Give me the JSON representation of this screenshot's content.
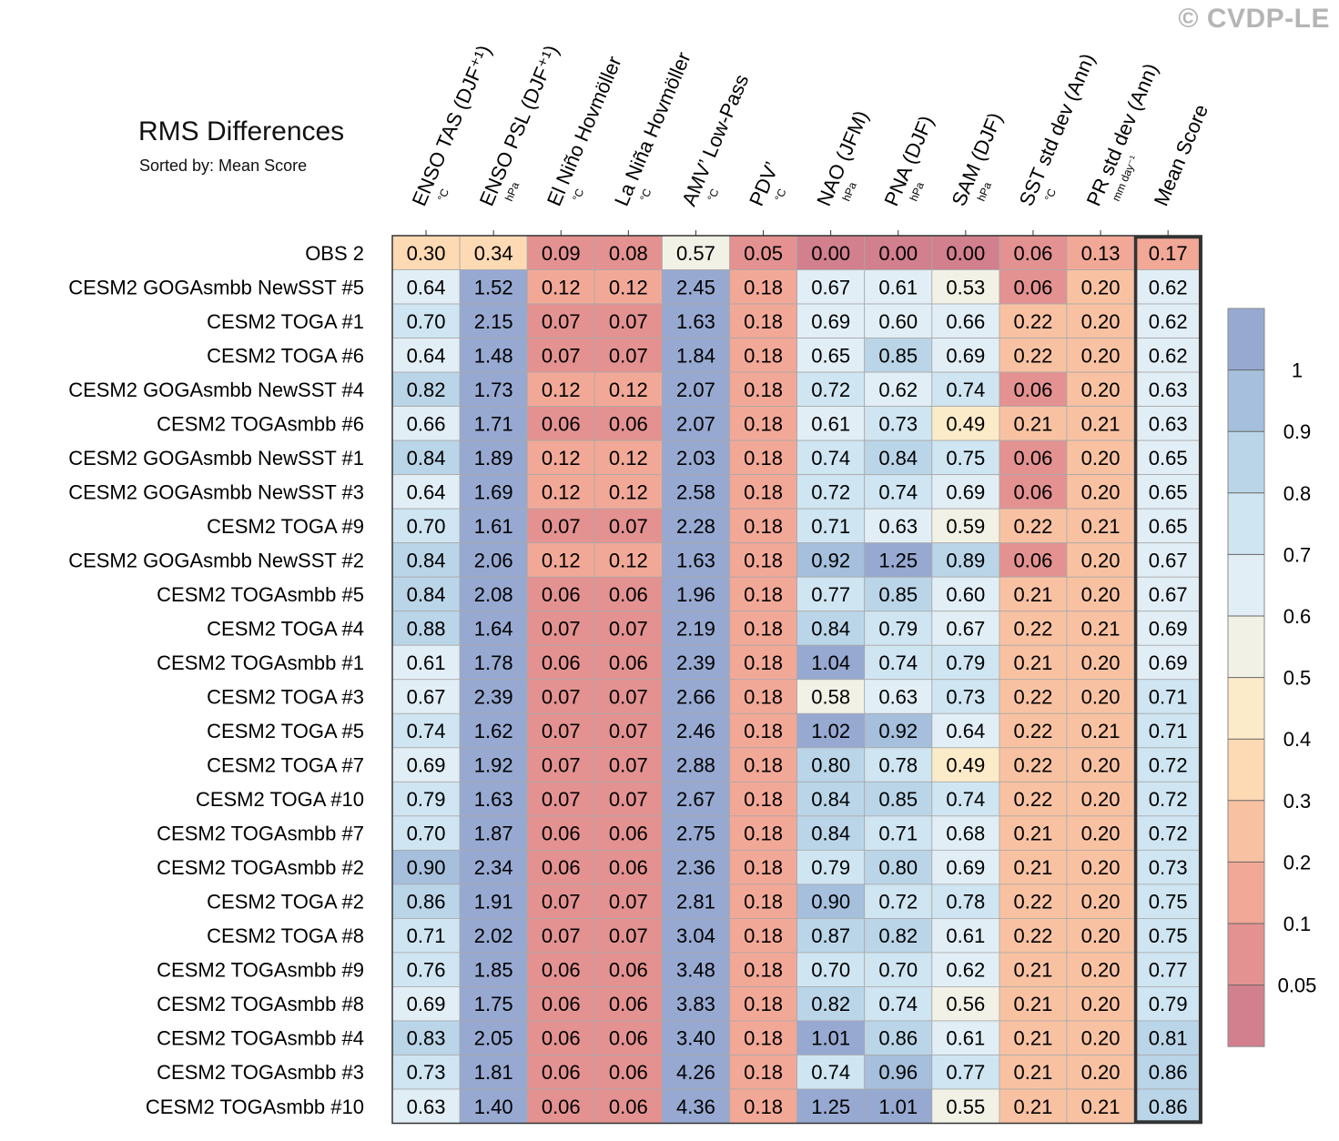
{
  "watermark": "© CVDP-LE",
  "chart_data": {
    "type": "heatmap",
    "title": "RMS Differences",
    "subtitle": "Sorted by: Mean Score",
    "columns": [
      {
        "name": "ENSO TAS (DJF⁺¹)",
        "unit": "°C"
      },
      {
        "name": "ENSO PSL (DJF⁺¹)",
        "unit": "hPa"
      },
      {
        "name": "El Niño Hovmöller",
        "unit": "°C"
      },
      {
        "name": "La Niña Hovmöller",
        "unit": "°C"
      },
      {
        "name": "AMV’ Low-Pass",
        "unit": "°C"
      },
      {
        "name": "PDV’",
        "unit": "°C"
      },
      {
        "name": "NAO (JFM)",
        "unit": "hPa"
      },
      {
        "name": "PNA (DJF)",
        "unit": "hPa"
      },
      {
        "name": "SAM (DJF)",
        "unit": "hPa"
      },
      {
        "name": "SST std dev (Ann)",
        "unit": "°C"
      },
      {
        "name": "PR std dev (Ann)",
        "unit": "mm day⁻¹"
      },
      {
        "name": "Mean Score",
        "unit": ""
      }
    ],
    "rows": [
      {
        "name": "OBS 2",
        "values": [
          "0.30",
          "0.34",
          "0.09",
          "0.08",
          "0.57",
          "0.05",
          "0.00",
          "0.00",
          "0.00",
          "0.06",
          "0.13",
          "0.17"
        ]
      },
      {
        "name": "CESM2 GOGAsmbb NewSST #5",
        "values": [
          "0.64",
          "1.52",
          "0.12",
          "0.12",
          "2.45",
          "0.18",
          "0.67",
          "0.61",
          "0.53",
          "0.06",
          "0.20",
          "0.62"
        ]
      },
      {
        "name": "CESM2 TOGA #1",
        "values": [
          "0.70",
          "2.15",
          "0.07",
          "0.07",
          "1.63",
          "0.18",
          "0.69",
          "0.60",
          "0.66",
          "0.22",
          "0.20",
          "0.62"
        ]
      },
      {
        "name": "CESM2 TOGA #6",
        "values": [
          "0.64",
          "1.48",
          "0.07",
          "0.07",
          "1.84",
          "0.18",
          "0.65",
          "0.85",
          "0.69",
          "0.22",
          "0.20",
          "0.62"
        ]
      },
      {
        "name": "CESM2 GOGAsmbb NewSST #4",
        "values": [
          "0.82",
          "1.73",
          "0.12",
          "0.12",
          "2.07",
          "0.18",
          "0.72",
          "0.62",
          "0.74",
          "0.06",
          "0.20",
          "0.63"
        ]
      },
      {
        "name": "CESM2 TOGAsmbb #6",
        "values": [
          "0.66",
          "1.71",
          "0.06",
          "0.06",
          "2.07",
          "0.18",
          "0.61",
          "0.73",
          "0.49",
          "0.21",
          "0.21",
          "0.63"
        ]
      },
      {
        "name": "CESM2 GOGAsmbb NewSST #1",
        "values": [
          "0.84",
          "1.89",
          "0.12",
          "0.12",
          "2.03",
          "0.18",
          "0.74",
          "0.84",
          "0.75",
          "0.06",
          "0.20",
          "0.65"
        ]
      },
      {
        "name": "CESM2 GOGAsmbb NewSST #3",
        "values": [
          "0.64",
          "1.69",
          "0.12",
          "0.12",
          "2.58",
          "0.18",
          "0.72",
          "0.74",
          "0.69",
          "0.06",
          "0.20",
          "0.65"
        ]
      },
      {
        "name": "CESM2 TOGA #9",
        "values": [
          "0.70",
          "1.61",
          "0.07",
          "0.07",
          "2.28",
          "0.18",
          "0.71",
          "0.63",
          "0.59",
          "0.22",
          "0.21",
          "0.65"
        ]
      },
      {
        "name": "CESM2 GOGAsmbb NewSST #2",
        "values": [
          "0.84",
          "2.06",
          "0.12",
          "0.12",
          "1.63",
          "0.18",
          "0.92",
          "1.25",
          "0.89",
          "0.06",
          "0.20",
          "0.67"
        ]
      },
      {
        "name": "CESM2 TOGAsmbb #5",
        "values": [
          "0.84",
          "2.08",
          "0.06",
          "0.06",
          "1.96",
          "0.18",
          "0.77",
          "0.85",
          "0.60",
          "0.21",
          "0.20",
          "0.67"
        ]
      },
      {
        "name": "CESM2 TOGA #4",
        "values": [
          "0.88",
          "1.64",
          "0.07",
          "0.07",
          "2.19",
          "0.18",
          "0.84",
          "0.79",
          "0.67",
          "0.22",
          "0.21",
          "0.69"
        ]
      },
      {
        "name": "CESM2 TOGAsmbb #1",
        "values": [
          "0.61",
          "1.78",
          "0.06",
          "0.06",
          "2.39",
          "0.18",
          "1.04",
          "0.74",
          "0.79",
          "0.21",
          "0.20",
          "0.69"
        ]
      },
      {
        "name": "CESM2 TOGA #3",
        "values": [
          "0.67",
          "2.39",
          "0.07",
          "0.07",
          "2.66",
          "0.18",
          "0.58",
          "0.63",
          "0.73",
          "0.22",
          "0.20",
          "0.71"
        ]
      },
      {
        "name": "CESM2 TOGA #5",
        "values": [
          "0.74",
          "1.62",
          "0.07",
          "0.07",
          "2.46",
          "0.18",
          "1.02",
          "0.92",
          "0.64",
          "0.22",
          "0.21",
          "0.71"
        ]
      },
      {
        "name": "CESM2 TOGA #7",
        "values": [
          "0.69",
          "1.92",
          "0.07",
          "0.07",
          "2.88",
          "0.18",
          "0.80",
          "0.78",
          "0.49",
          "0.22",
          "0.20",
          "0.72"
        ]
      },
      {
        "name": "CESM2 TOGA #10",
        "values": [
          "0.79",
          "1.63",
          "0.07",
          "0.07",
          "2.67",
          "0.18",
          "0.84",
          "0.85",
          "0.74",
          "0.22",
          "0.20",
          "0.72"
        ]
      },
      {
        "name": "CESM2 TOGAsmbb #7",
        "values": [
          "0.70",
          "1.87",
          "0.06",
          "0.06",
          "2.75",
          "0.18",
          "0.84",
          "0.71",
          "0.68",
          "0.21",
          "0.20",
          "0.72"
        ]
      },
      {
        "name": "CESM2 TOGAsmbb #2",
        "values": [
          "0.90",
          "2.34",
          "0.06",
          "0.06",
          "2.36",
          "0.18",
          "0.79",
          "0.80",
          "0.69",
          "0.21",
          "0.20",
          "0.73"
        ]
      },
      {
        "name": "CESM2 TOGA #2",
        "values": [
          "0.86",
          "1.91",
          "0.07",
          "0.07",
          "2.81",
          "0.18",
          "0.90",
          "0.72",
          "0.78",
          "0.22",
          "0.20",
          "0.75"
        ]
      },
      {
        "name": "CESM2 TOGA #8",
        "values": [
          "0.71",
          "2.02",
          "0.07",
          "0.07",
          "3.04",
          "0.18",
          "0.87",
          "0.82",
          "0.61",
          "0.22",
          "0.20",
          "0.75"
        ]
      },
      {
        "name": "CESM2 TOGAsmbb #9",
        "values": [
          "0.76",
          "1.85",
          "0.06",
          "0.06",
          "3.48",
          "0.18",
          "0.70",
          "0.70",
          "0.62",
          "0.21",
          "0.20",
          "0.77"
        ]
      },
      {
        "name": "CESM2 TOGAsmbb #8",
        "values": [
          "0.69",
          "1.75",
          "0.06",
          "0.06",
          "3.83",
          "0.18",
          "0.82",
          "0.74",
          "0.56",
          "0.21",
          "0.20",
          "0.79"
        ]
      },
      {
        "name": "CESM2 TOGAsmbb #4",
        "values": [
          "0.83",
          "2.05",
          "0.06",
          "0.06",
          "3.40",
          "0.18",
          "1.01",
          "0.86",
          "0.61",
          "0.21",
          "0.20",
          "0.81"
        ]
      },
      {
        "name": "CESM2 TOGAsmbb #3",
        "values": [
          "0.73",
          "1.81",
          "0.06",
          "0.06",
          "4.26",
          "0.18",
          "0.74",
          "0.96",
          "0.77",
          "0.21",
          "0.20",
          "0.86"
        ]
      },
      {
        "name": "CESM2 TOGAsmbb #10",
        "values": [
          "0.63",
          "1.40",
          "0.06",
          "0.06",
          "4.36",
          "0.18",
          "1.25",
          "1.01",
          "0.55",
          "0.21",
          "0.21",
          "0.86"
        ]
      }
    ],
    "colorbar": {
      "levels": [
        "0.05",
        "0.1",
        "0.2",
        "0.3",
        "0.4",
        "0.5",
        "0.6",
        "0.7",
        "0.8",
        "0.9",
        "1"
      ],
      "colors": [
        "#d27f8e",
        "#e39291",
        "#f2a897",
        "#f8c2a2",
        "#fdd9b4",
        "#fcebc8",
        "#f2f1e6",
        "#e2eef6",
        "#cfe5f1",
        "#bad5e8",
        "#a5bfdc",
        "#97a9d1"
      ]
    }
  }
}
